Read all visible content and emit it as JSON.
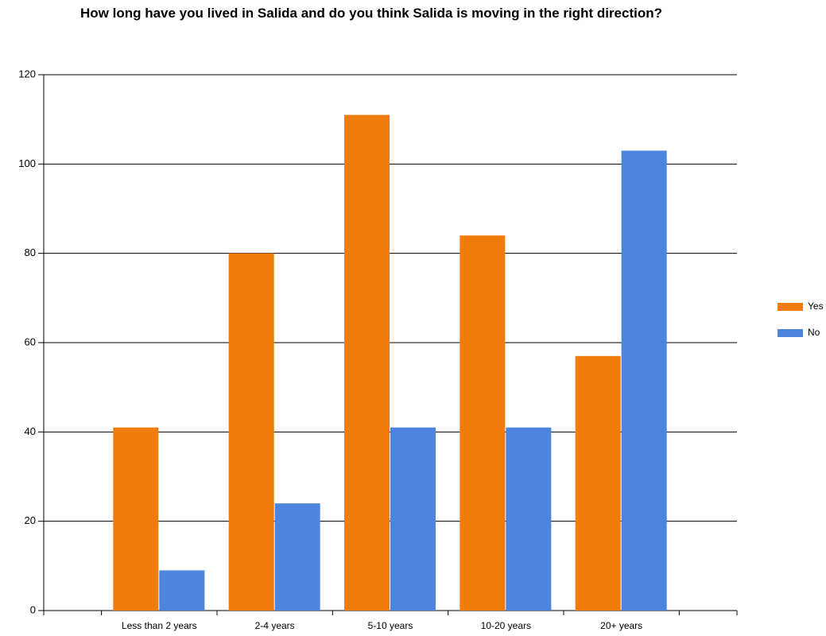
{
  "chart_data": {
    "type": "bar",
    "title": "How long have you lived in Salida and do you think Salida is moving in the right direction?",
    "categories": [
      "Less than 2 years",
      "2-4 years",
      "5-10 years",
      "10-20 years",
      "20+ years"
    ],
    "series": [
      {
        "name": "Yes",
        "color": "#f07c0c",
        "values": [
          41,
          80,
          111,
          84,
          57
        ]
      },
      {
        "name": "No",
        "color": "#4d84de",
        "values": [
          9,
          24,
          41,
          41,
          103
        ]
      }
    ],
    "ylim": [
      0,
      120
    ],
    "yticks": [
      0,
      20,
      40,
      60,
      80,
      100,
      120
    ],
    "grid": true,
    "legend": "right"
  }
}
